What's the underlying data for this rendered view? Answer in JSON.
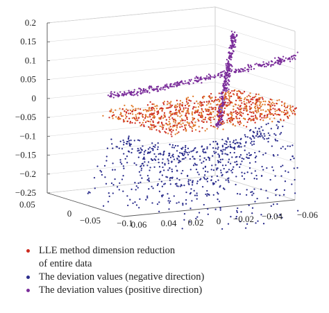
{
  "chart_data": {
    "type": "scatter",
    "projection": "3d",
    "grid": true,
    "legend_placement": "bottom",
    "axes": {
      "z": {
        "ticks": [
          "0.2",
          "0.15",
          "0.1",
          "0.05",
          "0",
          "−0.05",
          "−0.1",
          "−0.15",
          "−0.2",
          "−0.25"
        ],
        "range": [
          -0.25,
          0.2
        ]
      },
      "x": {
        "ticks": [
          "0.05",
          "0",
          "−0.05",
          "−0.1"
        ],
        "range": [
          -0.1,
          0.05
        ]
      },
      "y": {
        "ticks": [
          "0.06",
          "0.04",
          "0.02",
          "0",
          "−0.02",
          "−0.04",
          "−0.06"
        ],
        "range": [
          -0.06,
          0.06
        ]
      }
    },
    "series": [
      {
        "name_line1": "LLE method dimension reduction",
        "name_line2": "of entire data",
        "color": "#cc2a1e",
        "accent": "#e07a2a",
        "shape": "flat band near z = 0",
        "z_range": [
          -0.04,
          0.01
        ]
      },
      {
        "name_line1": "The deviation values (negative direction)",
        "name_line2": "",
        "color": "#2b2d8c",
        "shape": "inverted saddle below the band",
        "z_range": [
          -0.25,
          -0.02
        ]
      },
      {
        "name_line1": "The deviation values (positive direction)",
        "name_line2": "",
        "color": "#7a2d9a",
        "shape": "crossing ridges above the band",
        "z_range": [
          0.0,
          0.15
        ]
      }
    ]
  }
}
